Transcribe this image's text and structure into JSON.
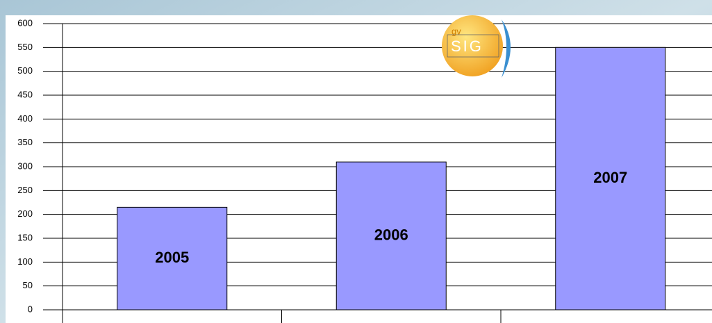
{
  "chart_data": {
    "type": "bar",
    "categories": [
      "2005",
      "2006",
      "2007"
    ],
    "values": [
      215,
      310,
      550
    ],
    "color": "#9999ff",
    "ylim": [
      0,
      600
    ],
    "yticks": [
      0,
      50,
      100,
      150,
      200,
      250,
      300,
      350,
      400,
      450,
      500,
      550,
      600
    ],
    "grid": true,
    "logo": {
      "small": "gv",
      "large": "SIG"
    }
  }
}
